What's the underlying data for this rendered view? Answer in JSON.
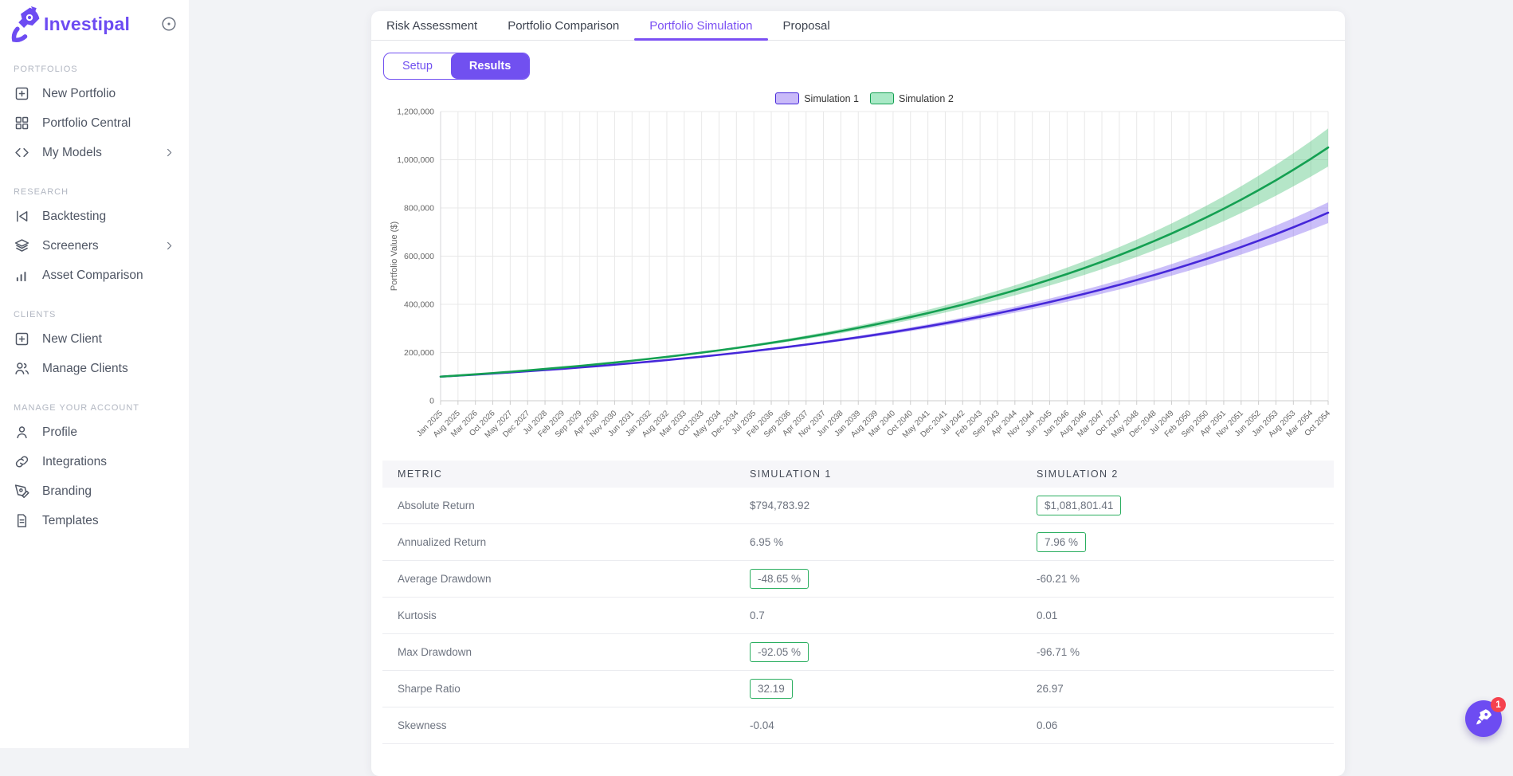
{
  "brand": {
    "name": "Investipal",
    "accent": "#6d4cf2"
  },
  "sidebar": {
    "sections": [
      {
        "heading": "PORTFOLIOS",
        "items": [
          {
            "label": "New Portfolio",
            "icon": "plus-square",
            "chevron": false
          },
          {
            "label": "Portfolio Central",
            "icon": "grid",
            "chevron": false
          },
          {
            "label": "My Models",
            "icon": "code",
            "chevron": true
          }
        ]
      },
      {
        "heading": "RESEARCH",
        "items": [
          {
            "label": "Backtesting",
            "icon": "skip-back",
            "chevron": false
          },
          {
            "label": "Screeners",
            "icon": "layers",
            "chevron": true
          },
          {
            "label": "Asset Comparison",
            "icon": "bar-chart",
            "chevron": false
          }
        ]
      },
      {
        "heading": "CLIENTS",
        "items": [
          {
            "label": "New Client",
            "icon": "plus-square",
            "chevron": false
          },
          {
            "label": "Manage Clients",
            "icon": "users",
            "chevron": false
          }
        ]
      },
      {
        "heading": "MANAGE YOUR ACCOUNT",
        "items": [
          {
            "label": "Profile",
            "icon": "user",
            "chevron": false
          },
          {
            "label": "Integrations",
            "icon": "link",
            "chevron": false
          },
          {
            "label": "Branding",
            "icon": "pen",
            "chevron": false
          },
          {
            "label": "Templates",
            "icon": "file",
            "chevron": false
          }
        ]
      }
    ]
  },
  "tabs": {
    "items": [
      "Risk Assessment",
      "Portfolio Comparison",
      "Portfolio Simulation",
      "Proposal"
    ],
    "active_index": 2
  },
  "view_toggle": {
    "options": [
      "Setup",
      "Results"
    ],
    "active": "Results"
  },
  "chart_data": {
    "type": "line",
    "title": "",
    "ylabel": "Portfolio Value ($)",
    "ylim": [
      0,
      1200000
    ],
    "yticks": [
      0,
      200000,
      400000,
      600000,
      800000,
      1000000,
      1200000
    ],
    "grid": true,
    "legend_position": "top-center",
    "categories": [
      "Jan 2025",
      "Aug 2025",
      "Mar 2026",
      "Oct 2026",
      "May 2027",
      "Dec 2027",
      "Jul 2028",
      "Feb 2029",
      "Sep 2029",
      "Apr 2030",
      "Nov 2030",
      "Jun 2031",
      "Jan 2032",
      "Aug 2032",
      "Mar 2033",
      "Oct 2033",
      "May 2034",
      "Dec 2034",
      "Jul 2035",
      "Feb 2036",
      "Sep 2036",
      "Apr 2037",
      "Nov 2037",
      "Jun 2038",
      "Jan 2039",
      "Aug 2039",
      "Mar 2040",
      "Oct 2040",
      "May 2041",
      "Dec 2041",
      "Jul 2042",
      "Feb 2043",
      "Sep 2043",
      "Apr 2044",
      "Nov 2044",
      "Jun 2045",
      "Jan 2046",
      "Aug 2046",
      "Mar 2047",
      "Oct 2047",
      "May 2048",
      "Dec 2048",
      "Jul 2049",
      "Feb 2050",
      "Sep 2050",
      "Apr 2051",
      "Nov 2051",
      "Jun 2052",
      "Jan 2053",
      "Aug 2053",
      "Mar 2054",
      "Oct 2054"
    ],
    "series": [
      {
        "name": "Simulation 1",
        "color": "#4527d9",
        "band_color": "rgba(124,95,240,0.40)",
        "swatch_fill": "#c9baf9",
        "band_end_frac": 0.055,
        "values": [
          100000,
          104110,
          108390,
          112845,
          117484,
          122313,
          127341,
          132575,
          138024,
          143698,
          149605,
          155754,
          162156,
          168821,
          175761,
          182986,
          190507,
          198338,
          206491,
          214978,
          223814,
          233014,
          242592,
          252564,
          262945,
          273753,
          285006,
          296720,
          308917,
          321615,
          334835,
          348598,
          362927,
          377845,
          393376,
          409545,
          426380,
          443905,
          462152,
          481149,
          500926,
          521516,
          542952,
          565270,
          588505,
          612695,
          637879,
          664098,
          691395,
          719814,
          749400,
          780202
        ]
      },
      {
        "name": "Simulation 2",
        "color": "#14a052",
        "band_color": "rgba(60,190,110,0.38)",
        "swatch_fill": "#a9e9c6",
        "band_end_frac": 0.075,
        "values": [
          100000,
          104720,
          109663,
          114839,
          120259,
          125936,
          131880,
          138105,
          144623,
          151449,
          158597,
          166083,
          173922,
          182131,
          190728,
          199730,
          209157,
          219029,
          229367,
          240193,
          251530,
          263402,
          275834,
          288853,
          302487,
          316764,
          331715,
          347372,
          363767,
          380936,
          398915,
          417743,
          437459,
          458107,
          479729,
          502372,
          526084,
          550915,
          576918,
          604148,
          632663,
          662524,
          693794,
          726540,
          760832,
          796742,
          834348,
          873730,
          914972,
          958163,
          1003392,
          1050756
        ]
      }
    ]
  },
  "metrics_table": {
    "columns": [
      "METRIC",
      "SIMULATION 1",
      "SIMULATION 2"
    ],
    "rows": [
      {
        "metric": "Absolute Return",
        "sim1": "$794,783.92",
        "sim2": "$1,081,801.41",
        "highlight": "sim2"
      },
      {
        "metric": "Annualized Return",
        "sim1": "6.95 %",
        "sim2": "7.96 %",
        "highlight": "sim2"
      },
      {
        "metric": "Average Drawdown",
        "sim1": "-48.65 %",
        "sim2": "-60.21 %",
        "highlight": "sim1"
      },
      {
        "metric": "Kurtosis",
        "sim1": "0.7",
        "sim2": "0.01",
        "highlight": null
      },
      {
        "metric": "Max Drawdown",
        "sim1": "-92.05 %",
        "sim2": "-96.71 %",
        "highlight": "sim1"
      },
      {
        "metric": "Sharpe Ratio",
        "sim1": "32.19",
        "sim2": "26.97",
        "highlight": "sim1"
      },
      {
        "metric": "Skewness",
        "sim1": "-0.04",
        "sim2": "0.06",
        "highlight": null
      }
    ],
    "highlight_border_color": "#2aae5f"
  },
  "fab": {
    "badge": "1",
    "color": "#6d4cf2",
    "badge_color": "#f5424e"
  }
}
